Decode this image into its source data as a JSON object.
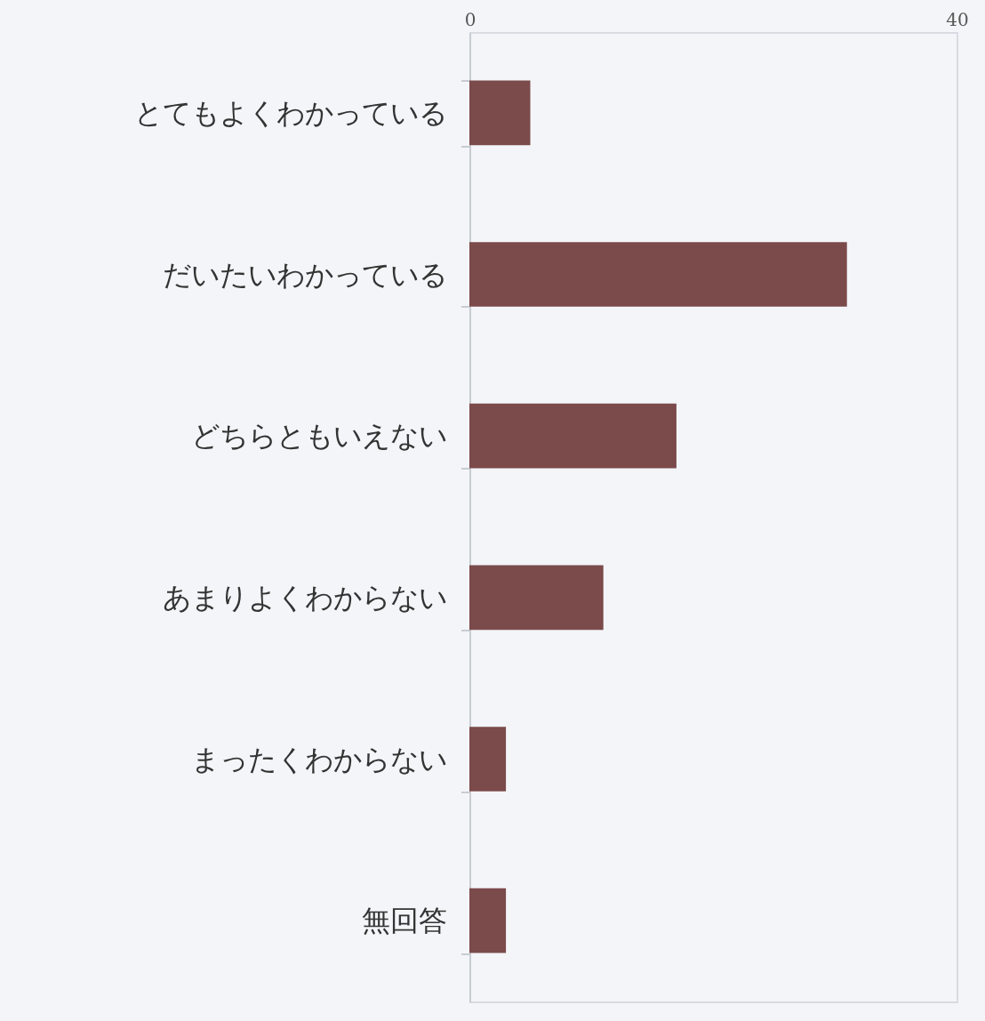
{
  "chart_data": {
    "type": "bar",
    "orientation": "horizontal",
    "categories": [
      "とてもよくわかっている",
      "だいたいわかっている",
      "どちらともいえない",
      "あまりよくわからない",
      "まったくわからない",
      "無回答"
    ],
    "values": [
      5,
      31,
      17,
      11,
      3,
      3
    ],
    "color": "#7b4a4a",
    "xlim": [
      0,
      40
    ],
    "xticks": [
      0,
      40
    ]
  }
}
